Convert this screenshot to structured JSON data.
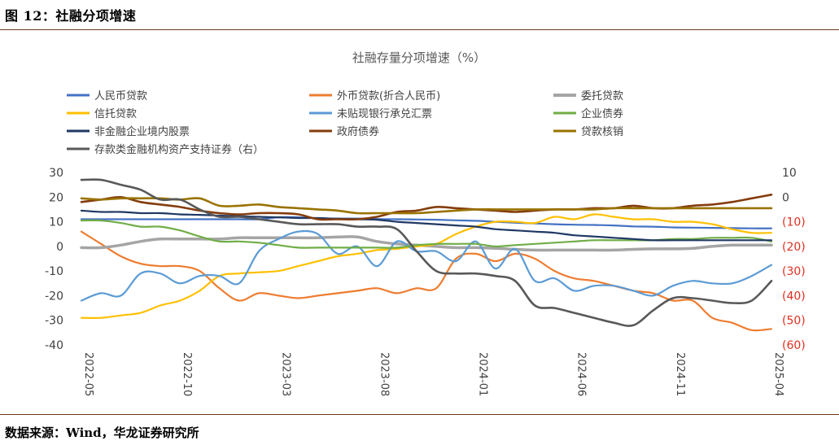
{
  "figure": {
    "title": "图 12：社融分项增速",
    "source": "数据来源：Wind，华龙证券研究所"
  },
  "chart_data": {
    "type": "line",
    "title": "社融存量分项增速（%）",
    "x": [
      "2022-05",
      "2022-06",
      "2022-07",
      "2022-08",
      "2022-09",
      "2022-10",
      "2022-11",
      "2022-12",
      "2023-01",
      "2023-02",
      "2023-03",
      "2023-04",
      "2023-05",
      "2023-06",
      "2023-07",
      "2023-08",
      "2023-09",
      "2023-10",
      "2023-11",
      "2023-12",
      "2024-01",
      "2024-02",
      "2024-03",
      "2024-04",
      "2024-05",
      "2024-06",
      "2024-07",
      "2024-08",
      "2024-09",
      "2024-10",
      "2024-11",
      "2024-12",
      "2025-01",
      "2025-02",
      "2025-03",
      "2025-04"
    ],
    "x_ticks": [
      "2022-05",
      "2022-10",
      "2023-03",
      "2023-08",
      "2024-01",
      "2024-06",
      "2024-11",
      "2025-04"
    ],
    "y_left": {
      "ticks": [
        "30",
        "20",
        "10",
        "0",
        "-10",
        "-20",
        "-30",
        "-40"
      ],
      "range": [
        -40,
        30
      ]
    },
    "y_right": {
      "ticks": [
        "10",
        "0",
        "(10)",
        "(20)",
        "(30)",
        "(40)",
        "(50)",
        "(60)"
      ],
      "range": [
        -60,
        10
      ],
      "negative_color": "#e03020"
    },
    "legend_placement": "top",
    "grid": false,
    "series": [
      {
        "name": "人民币贷款",
        "color": "#4472c4",
        "axis": "left",
        "width": 2.2,
        "values": [
          11,
          11,
          11,
          11,
          11,
          11,
          11,
          11,
          11,
          11,
          11.8,
          11.8,
          11.4,
          11.3,
          11.3,
          11.1,
          11,
          10.9,
          10.8,
          10.6,
          10.4,
          10,
          9.6,
          9.3,
          9,
          8.8,
          8.7,
          8.5,
          8.1,
          8,
          7.7,
          7.6,
          7.5,
          7.4,
          7.3,
          7.3
        ]
      },
      {
        "name": "外币贷款(折合人民币)",
        "color": "#ed7d31",
        "axis": "left",
        "width": 2.2,
        "values": [
          6,
          1,
          -4,
          -7,
          -8,
          -8,
          -10,
          -17,
          -22,
          -19,
          -20,
          -21,
          -20,
          -19,
          -18,
          -17,
          -19,
          -17,
          -17,
          -5,
          -3,
          -6,
          -3,
          -5,
          -10,
          -13,
          -14,
          -16,
          -18,
          -19,
          -22,
          -22,
          -29,
          -31,
          -34,
          -33.5
        ]
      },
      {
        "name": "委托贷款",
        "color": "#a5a5a5",
        "axis": "left",
        "width": 3.5,
        "values": [
          -0.5,
          -0.5,
          0.5,
          2,
          3,
          3,
          3,
          3,
          3.5,
          3.5,
          3.5,
          3.5,
          3.5,
          3.8,
          3.8,
          2,
          1,
          0.5,
          0,
          -0.5,
          -0.5,
          -0.8,
          -1.2,
          -1.5,
          -1.5,
          -1.5,
          -1.5,
          -1.5,
          -1.2,
          -1,
          -1,
          -0.8,
          0,
          0.5,
          0.5,
          0.5
        ]
      },
      {
        "name": "信托贷款",
        "color": "#ffc000",
        "axis": "left",
        "width": 2.2,
        "values": [
          -29,
          -29,
          -28,
          -27,
          -24,
          -22,
          -18,
          -12,
          -11,
          -10.5,
          -10,
          -8,
          -6,
          -4,
          -3,
          -1.5,
          -1,
          0,
          1,
          5,
          8,
          10,
          10,
          9.5,
          12,
          11,
          13,
          12,
          11,
          11,
          10,
          10,
          9,
          7,
          5.5,
          5.5
        ]
      },
      {
        "name": "未贴现银行承兑汇票",
        "color": "#5b9bd5",
        "axis": "left",
        "width": 2.2,
        "values": [
          -22,
          -19,
          -20,
          -11,
          -11,
          -15,
          -12,
          -12,
          -15,
          -2,
          3,
          6,
          5,
          -3,
          0,
          -8,
          2,
          -2,
          -2,
          -6,
          2,
          -9,
          -1,
          -14,
          -13,
          -18,
          -16,
          -16,
          -18,
          -20,
          -16,
          -14,
          -15,
          -15,
          -12,
          -7.5
        ]
      },
      {
        "name": "企业债券",
        "color": "#70ad47",
        "axis": "left",
        "width": 2.2,
        "values": [
          10.5,
          10.5,
          9.5,
          8,
          8,
          6.5,
          4,
          2,
          2,
          1.5,
          0.5,
          -0.5,
          -0.5,
          -0.5,
          -0.5,
          -0.5,
          -0.5,
          0.5,
          1,
          1,
          1,
          0,
          0.5,
          1,
          1.5,
          2,
          2.5,
          2.5,
          2.5,
          2.5,
          3,
          3,
          3.5,
          3.5,
          3.5,
          2
        ]
      },
      {
        "name": "非金融企业境内股票",
        "color": "#1f3864",
        "axis": "left",
        "width": 2.2,
        "values": [
          14.5,
          14,
          14,
          13.5,
          13.5,
          13,
          12.8,
          12.5,
          12.3,
          12,
          11.8,
          11.5,
          11.5,
          11.2,
          11,
          10.8,
          10,
          9.5,
          9,
          8.5,
          8,
          7,
          6.5,
          6,
          5.5,
          4.5,
          4,
          3.5,
          3,
          2.5,
          2.5,
          2.5,
          2.5,
          2.5,
          2.5,
          2.5
        ]
      },
      {
        "name": "政府债券",
        "color": "#843c0c",
        "axis": "left",
        "width": 2.6,
        "values": [
          18,
          19,
          20,
          18,
          17,
          16,
          14.5,
          13.5,
          13,
          13.5,
          13.5,
          13,
          11,
          11,
          11,
          12,
          14,
          14.5,
          16,
          15.5,
          15,
          14.5,
          14,
          14.5,
          15,
          15,
          15.5,
          15.5,
          16.5,
          15.5,
          15.5,
          16.5,
          17,
          18,
          19.5,
          21
        ]
      },
      {
        "name": "贷款核销",
        "color": "#997300",
        "axis": "left",
        "width": 2.6,
        "values": [
          19.5,
          19,
          19.5,
          19.5,
          19.5,
          19,
          19.5,
          16.5,
          16.5,
          17,
          16,
          15.5,
          15,
          14.5,
          13.5,
          13.5,
          13.5,
          13.5,
          14,
          14.5,
          15,
          15,
          15,
          15,
          15,
          15,
          15,
          15.5,
          15.5,
          15.5,
          15.5,
          15.5,
          15.5,
          15.5,
          15.5,
          15.5
        ]
      },
      {
        "name": "存款类金融机构资产支持证券（右）",
        "color": "#595959",
        "axis": "right",
        "width": 2.6,
        "values": [
          7,
          7,
          5,
          3,
          -1,
          -1,
          -5,
          -8,
          -8,
          -9,
          -10,
          -11,
          -11,
          -11,
          -12,
          -12,
          -13,
          -22,
          -30,
          -31,
          -31,
          -32,
          -34,
          -44,
          -45,
          -47,
          -49,
          -51,
          -52,
          -46,
          -41,
          -41,
          -42,
          -43,
          -42,
          -34
        ]
      }
    ]
  }
}
